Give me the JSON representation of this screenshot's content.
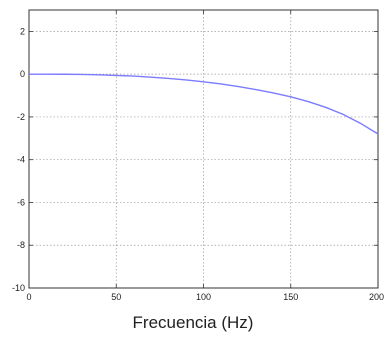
{
  "chart_data": {
    "type": "line",
    "xlabel": "Frecuencia (Hz)",
    "ylabel": "",
    "title": "",
    "xlim": [
      0,
      200
    ],
    "ylim": [
      -10,
      3
    ],
    "x_ticks": [
      0,
      50,
      100,
      150,
      200
    ],
    "y_ticks": [
      2,
      0,
      -2,
      -4,
      -6,
      -8,
      -10
    ],
    "grid": true,
    "series": [
      {
        "color": "#7b7bff",
        "x": [
          0,
          10,
          20,
          30,
          40,
          50,
          60,
          70,
          80,
          90,
          100,
          110,
          120,
          130,
          140,
          150,
          160,
          170,
          180,
          190,
          200
        ],
        "y": [
          0,
          -0.001,
          -0.005,
          -0.015,
          -0.03,
          -0.06,
          -0.09,
          -0.14,
          -0.2,
          -0.27,
          -0.36,
          -0.46,
          -0.58,
          -0.72,
          -0.88,
          -1.06,
          -1.28,
          -1.55,
          -1.88,
          -2.3,
          -2.8
        ]
      }
    ]
  }
}
